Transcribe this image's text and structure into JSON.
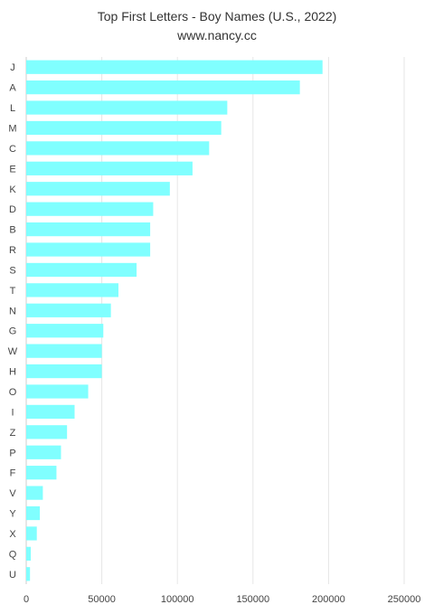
{
  "chart_data": {
    "type": "bar",
    "orientation": "horizontal",
    "title": "Top First Letters - Boy Names (U.S., 2022)",
    "subtitle": "www.nancy.cc",
    "xlabel": "",
    "ylabel": "",
    "xlim": [
      0,
      250000
    ],
    "x_ticks": [
      0,
      50000,
      100000,
      150000,
      200000,
      250000
    ],
    "grid": true,
    "bar_color": "#80ffff",
    "categories": [
      "J",
      "A",
      "L",
      "M",
      "C",
      "E",
      "K",
      "D",
      "B",
      "R",
      "S",
      "T",
      "N",
      "G",
      "W",
      "H",
      "O",
      "I",
      "Z",
      "P",
      "F",
      "V",
      "Y",
      "X",
      "Q",
      "U"
    ],
    "values": [
      196000,
      181000,
      133000,
      129000,
      121000,
      110000,
      95000,
      84000,
      82000,
      82000,
      73000,
      61000,
      56000,
      51000,
      50000,
      50000,
      41000,
      32000,
      27000,
      23000,
      20000,
      11000,
      9000,
      7000,
      3000,
      2500
    ]
  }
}
